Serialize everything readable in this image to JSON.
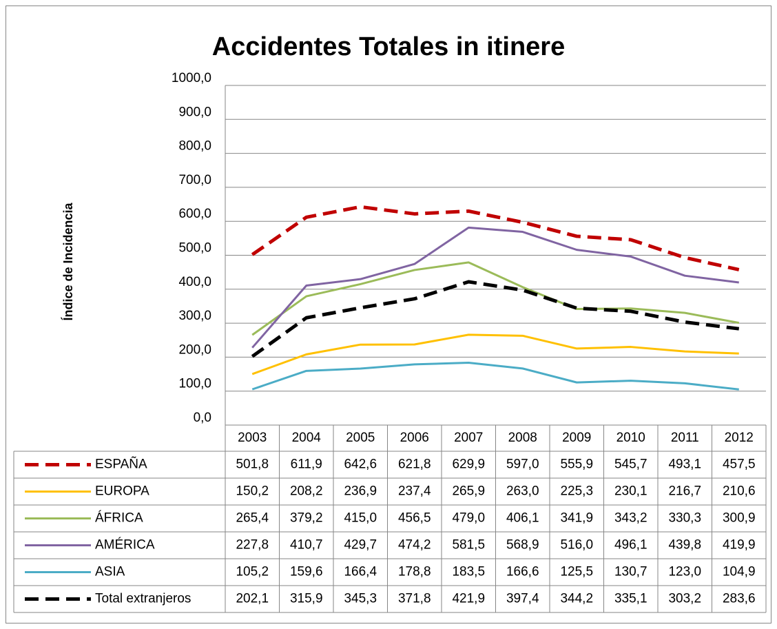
{
  "chart_data": {
    "type": "line",
    "title": "Accidentes Totales in itinere",
    "y_label": "Índice de Incidencia",
    "categories": [
      "2003",
      "2004",
      "2005",
      "2006",
      "2007",
      "2008",
      "2009",
      "2010",
      "2011",
      "2012"
    ],
    "ylim": [
      0,
      1000
    ],
    "yticks": [
      {
        "value": 0,
        "label": "0,0"
      },
      {
        "value": 100,
        "label": "100,0"
      },
      {
        "value": 200,
        "label": "200,0"
      },
      {
        "value": 300,
        "label": "300,0"
      },
      {
        "value": 400,
        "label": "400,0"
      },
      {
        "value": 500,
        "label": "500,0"
      },
      {
        "value": 600,
        "label": "600,0"
      },
      {
        "value": 700,
        "label": "700,0"
      },
      {
        "value": 800,
        "label": "800,0"
      },
      {
        "value": 900,
        "label": "900,0"
      },
      {
        "value": 1000,
        "label": "1000,0"
      }
    ],
    "grid": true,
    "series": [
      {
        "name": "ESPAÑA",
        "color": "#c00000",
        "dashed": true,
        "values": [
          501.8,
          611.9,
          642.6,
          621.8,
          629.9,
          597.0,
          555.9,
          545.7,
          493.1,
          457.5
        ],
        "value_labels": [
          "501,8",
          "611,9",
          "642,6",
          "621,8",
          "629,9",
          "597,0",
          "555,9",
          "545,7",
          "493,1",
          "457,5"
        ]
      },
      {
        "name": "EUROPA",
        "color": "#ffc000",
        "dashed": false,
        "values": [
          150.2,
          208.2,
          236.9,
          237.4,
          265.9,
          263.0,
          225.3,
          230.1,
          216.7,
          210.6
        ],
        "value_labels": [
          "150,2",
          "208,2",
          "236,9",
          "237,4",
          "265,9",
          "263,0",
          "225,3",
          "230,1",
          "216,7",
          "210,6"
        ]
      },
      {
        "name": "ÁFRICA",
        "color": "#9bbb59",
        "dashed": false,
        "values": [
          265.4,
          379.2,
          415.0,
          456.5,
          479.0,
          406.1,
          341.9,
          343.2,
          330.3,
          300.9
        ],
        "value_labels": [
          "265,4",
          "379,2",
          "415,0",
          "456,5",
          "479,0",
          "406,1",
          "341,9",
          "343,2",
          "330,3",
          "300,9"
        ]
      },
      {
        "name": "AMÉRICA",
        "color": "#8064a2",
        "dashed": false,
        "values": [
          227.8,
          410.7,
          429.7,
          474.2,
          581.5,
          568.9,
          516.0,
          496.1,
          439.8,
          419.9
        ],
        "value_labels": [
          "227,8",
          "410,7",
          "429,7",
          "474,2",
          "581,5",
          "568,9",
          "516,0",
          "496,1",
          "439,8",
          "419,9"
        ]
      },
      {
        "name": "ASIA",
        "color": "#4bacc6",
        "dashed": false,
        "values": [
          105.2,
          159.6,
          166.4,
          178.8,
          183.5,
          166.6,
          125.5,
          130.7,
          123.0,
          104.9
        ],
        "value_labels": [
          "105,2",
          "159,6",
          "166,4",
          "178,8",
          "183,5",
          "166,6",
          "125,5",
          "130,7",
          "123,0",
          "104,9"
        ]
      },
      {
        "name": "Total extranjeros",
        "color": "#000000",
        "dashed": true,
        "values": [
          202.1,
          315.9,
          345.3,
          371.8,
          421.9,
          397.4,
          344.2,
          335.1,
          303.2,
          283.6
        ],
        "value_labels": [
          "202,1",
          "315,9",
          "345,3",
          "371,8",
          "421,9",
          "397,4",
          "344,2",
          "335,1",
          "303,2",
          "283,6"
        ]
      }
    ]
  }
}
